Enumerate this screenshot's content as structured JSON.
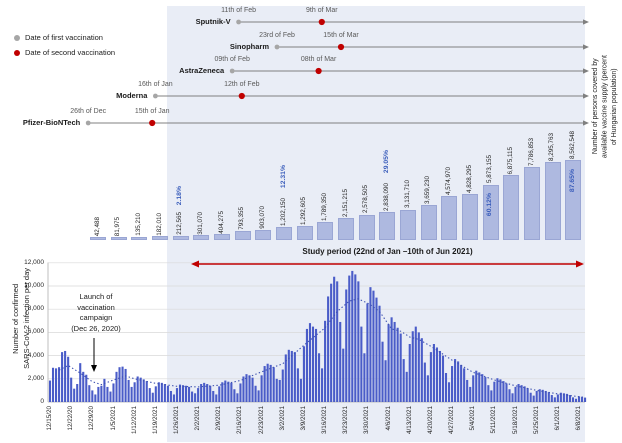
{
  "colors": {
    "band": "#e9edf6",
    "supply_bar": "#aeb9e0",
    "supply_bar_border": "#9aa6d4",
    "pct_text": "#3a5dbb",
    "epi_bar": "#4a5cc8",
    "trend": "#3c50b0",
    "red": "#c00000",
    "gray_line": "#808080",
    "gray_dot": "#a6a6a6",
    "grid": "#d9d9d9",
    "axis": "#bfbfbf"
  },
  "legend": {
    "items": [
      {
        "label": "Date of first vaccination",
        "color": "#a6a6a6"
      },
      {
        "label": "Date of second vaccination",
        "color": "#c00000"
      }
    ]
  },
  "timeline": {
    "vaccines": [
      {
        "name": "Sputnik-V",
        "first": {
          "label": "11th of Feb",
          "day": 58
        },
        "second": {
          "label": "9th of Mar",
          "day": 84
        }
      },
      {
        "name": "Sinopharm",
        "first": {
          "label": "23rd of Feb",
          "day": 70
        },
        "second": {
          "label": "15th of Mar",
          "day": 90
        }
      },
      {
        "name": "AstraZeneca",
        "first": {
          "label": "09th of Feb",
          "day": 56
        },
        "second": {
          "label": "08th of Mar",
          "day": 83
        }
      },
      {
        "name": "Moderna",
        "first": {
          "label": "16th of Jan",
          "day": 32
        },
        "second": {
          "label": "12th of Feb",
          "day": 59
        }
      },
      {
        "name": "Pfizer-BioNTech",
        "first": {
          "label": "26th of Dec",
          "day": 11
        },
        "second": {
          "label": "15th of Jan",
          "day": 31
        }
      }
    ]
  },
  "chart_data": [
    {
      "type": "bar",
      "name": "vaccine_supply",
      "ylabel": "Number of persons covered by\navailable vaccine supply (percent\nof Hungarian population)",
      "bars": [
        {
          "v": 42488,
          "label": "42,488"
        },
        {
          "v": 81975,
          "label": "81,975"
        },
        {
          "v": 135210,
          "label": "135,210"
        },
        {
          "v": 182010,
          "label": "182,010"
        },
        {
          "v": 212565,
          "label": "212,565",
          "pct": "2.18%",
          "pct_pos": "above"
        },
        {
          "v": 301070,
          "label": "301,070"
        },
        {
          "v": 404275,
          "label": "404,275"
        },
        {
          "v": 793355,
          "label": "793,355"
        },
        {
          "v": 903070,
          "label": "903,070"
        },
        {
          "v": 1202150,
          "label": "1,202,150",
          "pct": "12.31%",
          "pct_pos": "above"
        },
        {
          "v": 1292605,
          "label": "1,292,605"
        },
        {
          "v": 1789350,
          "label": "1,789,350"
        },
        {
          "v": 2151215,
          "label": "2,151,215"
        },
        {
          "v": 2578505,
          "label": "2,578,505"
        },
        {
          "v": 2838090,
          "label": "2,838,090",
          "pct": "29.05%",
          "pct_pos": "above"
        },
        {
          "v": 3131710,
          "label": "3,131,710"
        },
        {
          "v": 3659230,
          "label": "3,659,230"
        },
        {
          "v": 4574970,
          "label": "4,574,970"
        },
        {
          "v": 4828295,
          "label": "4,828,295"
        },
        {
          "v": 5873155,
          "label": "5,873,155",
          "pct": "60.12%",
          "pct_pos": "inside"
        },
        {
          "v": 6875115,
          "label": "6,875,115"
        },
        {
          "v": 7786853,
          "label": "7,786,853"
        },
        {
          "v": 8295763,
          "label": "8,295,763"
        },
        {
          "v": 8562548,
          "label": "8,562,548",
          "pct": "87.65%",
          "pct_pos": "inside"
        }
      ]
    },
    {
      "type": "bar",
      "name": "daily_infections",
      "ylabel": "Number of confirmed\nSARS-CoV-2 infection per day",
      "ylim": [
        0,
        12000
      ],
      "ytick_labels": [
        "12,000",
        "10,000",
        "8,000",
        "6,000",
        "4,000",
        "2,000",
        "0"
      ],
      "x_start_date": "12/15/20",
      "tick_every_days": 7,
      "x_tick_labels": [
        "12/15/20",
        "12/22/20",
        "12/29/20",
        "1/5/2021",
        "1/12/2021",
        "1/19/2021",
        "1/26/2021",
        "2/2/2021",
        "2/9/2021",
        "2/16/2021",
        "2/23/2021",
        "3/2/2021",
        "3/9/2021",
        "3/16/2021",
        "3/23/2021",
        "3/30/2021",
        "4/6/2021",
        "4/13/2021",
        "4/20/2021",
        "4/27/2021",
        "5/4/2021",
        "5/11/2021",
        "5/18/2021",
        "5/25/2021",
        "6/1/2021",
        "6/8/2021"
      ],
      "values": [
        1850,
        2950,
        2900,
        3000,
        4300,
        4400,
        3900,
        2100,
        1150,
        1550,
        3350,
        2600,
        2350,
        1450,
        1000,
        650,
        1300,
        1400,
        2000,
        1300,
        900,
        1600,
        2600,
        3000,
        3050,
        2850,
        1900,
        1300,
        1700,
        2200,
        2100,
        1950,
        1800,
        1200,
        800,
        1350,
        1700,
        1650,
        1550,
        1400,
        950,
        650,
        1200,
        1500,
        1450,
        1400,
        1300,
        900,
        750,
        1200,
        1550,
        1650,
        1550,
        1400,
        950,
        650,
        1350,
        1700,
        1850,
        1750,
        1650,
        1100,
        750,
        1600,
        2200,
        2400,
        2300,
        2100,
        1400,
        1000,
        2300,
        3100,
        3300,
        3200,
        3000,
        2000,
        1900,
        2800,
        4100,
        4500,
        4400,
        4300,
        2900,
        2000,
        4800,
        6300,
        6800,
        6500,
        6300,
        4200,
        2900,
        7000,
        9100,
        10200,
        10800,
        10400,
        6900,
        4600,
        9700,
        10900,
        11300,
        11000,
        10400,
        6500,
        4200,
        8500,
        9900,
        9600,
        9000,
        8300,
        5200,
        3600,
        6700,
        7300,
        6900,
        6400,
        5900,
        3700,
        2600,
        5000,
        6100,
        6500,
        6000,
        5500,
        3400,
        2300,
        4300,
        5000,
        4700,
        4400,
        4000,
        2500,
        1700,
        3100,
        3700,
        3500,
        3200,
        2900,
        1900,
        1300,
        2300,
        2700,
        2550,
        2400,
        2150,
        1450,
        1000,
        1750,
        2050,
        1950,
        1800,
        1600,
        1100,
        750,
        1300,
        1550,
        1450,
        1350,
        1200,
        800,
        550,
        950,
        1100,
        1050,
        950,
        850,
        600,
        400,
        650,
        800,
        750,
        700,
        600,
        400,
        280,
        480,
        420,
        380
      ],
      "trend": [
        [
          3,
          2750
        ],
        [
          6,
          3150
        ],
        [
          10,
          2500
        ],
        [
          14,
          1750
        ],
        [
          17,
          1500
        ],
        [
          21,
          1900
        ],
        [
          25,
          2250
        ],
        [
          28,
          2000
        ],
        [
          35,
          1600
        ],
        [
          42,
          1350
        ],
        [
          49,
          1300
        ],
        [
          56,
          1450
        ],
        [
          63,
          1850
        ],
        [
          70,
          2600
        ],
        [
          77,
          3300
        ],
        [
          84,
          4900
        ],
        [
          91,
          6400
        ],
        [
          95,
          7800
        ],
        [
          99,
          8700
        ],
        [
          102,
          8900
        ],
        [
          106,
          8400
        ],
        [
          109,
          7800
        ],
        [
          113,
          6300
        ],
        [
          116,
          6100
        ],
        [
          119,
          5600
        ],
        [
          122,
          5400
        ],
        [
          126,
          4800
        ],
        [
          133,
          3600
        ],
        [
          140,
          2550
        ],
        [
          147,
          1900
        ],
        [
          154,
          1400
        ],
        [
          161,
          1000
        ],
        [
          168,
          700
        ],
        [
          172,
          550
        ],
        [
          177,
          400
        ]
      ],
      "annotations": {
        "launch": "Launch of\nvaccination\ncampaign\n(Dec 26, 2020)",
        "study_period": "Study period (22nd of Jan –10th of Jun 2021)"
      }
    }
  ]
}
